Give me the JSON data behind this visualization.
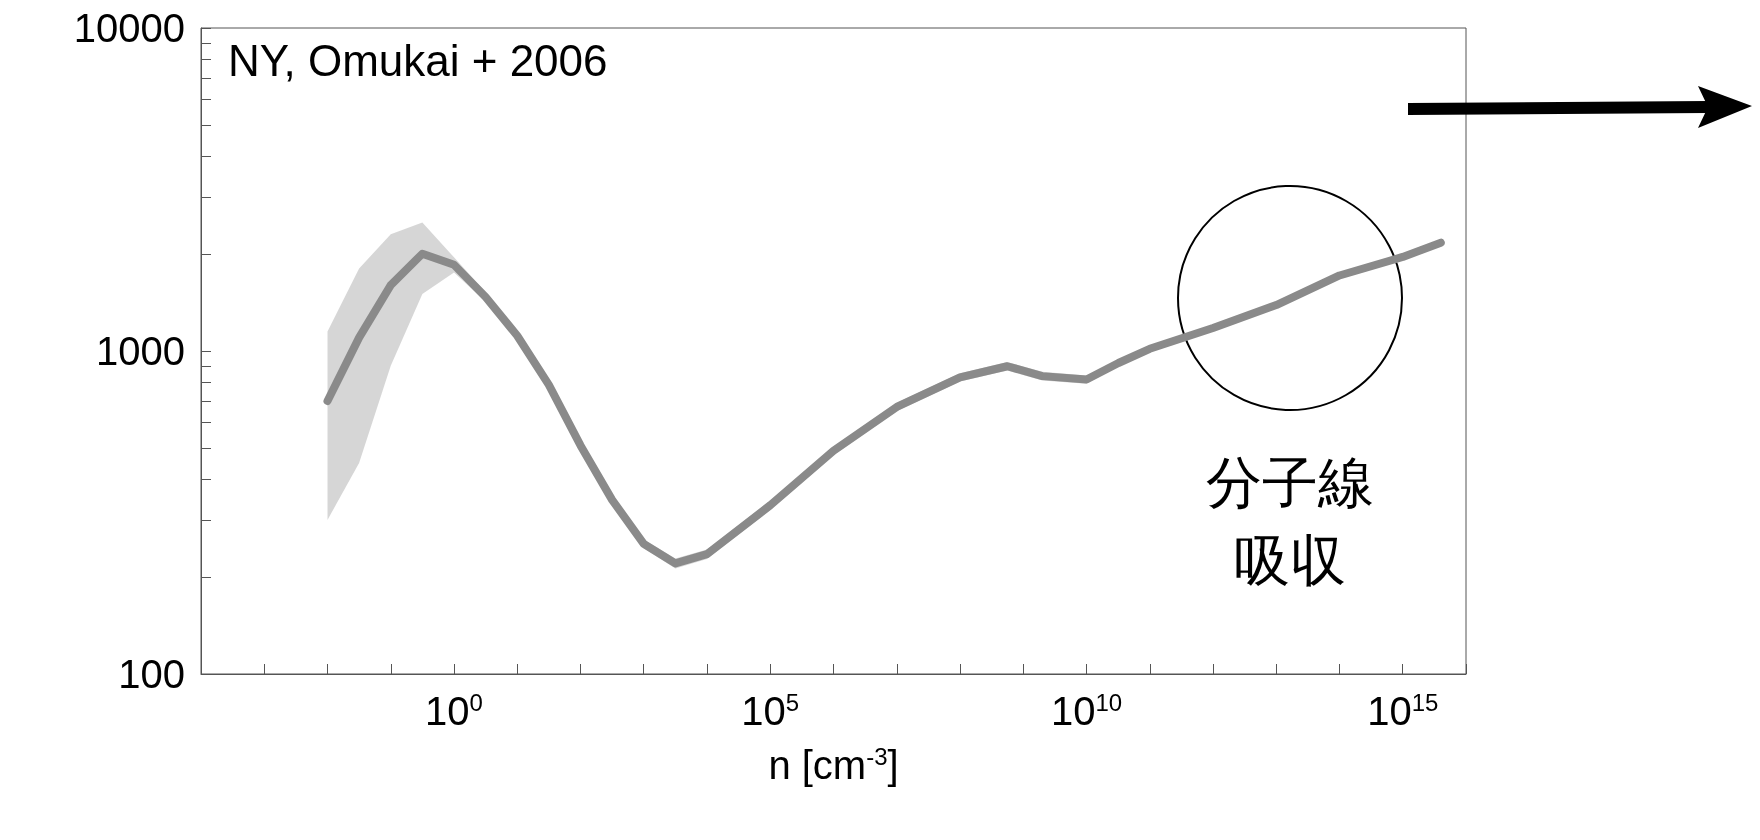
{
  "chart_data": {
    "type": "line",
    "xlabel": "n [cm$^{-3}$]",
    "annotations": [
      "NY, Omukai + 2006",
      "分子線吸収"
    ],
    "log": "xy",
    "grid": false,
    "line_style": "solid",
    "xlim": [
      0.0001,
      1e+16
    ],
    "ylim": [
      100,
      10000
    ],
    "xticks": [
      {
        "value": 0.0001,
        "label": null
      },
      {
        "value": 0.001,
        "label": null
      },
      {
        "value": 0.01,
        "label": null
      },
      {
        "value": 0.1,
        "label": null
      },
      {
        "value": 1,
        "label": "10$^{0}$"
      },
      {
        "value": 10,
        "label": null
      },
      {
        "value": 100,
        "label": null
      },
      {
        "value": 1000.0,
        "label": null
      },
      {
        "value": 10000.0,
        "label": null
      },
      {
        "value": 100000.0,
        "label": "10$^{5}$"
      },
      {
        "value": 1000000.0,
        "label": null
      },
      {
        "value": 10000000.0,
        "label": null
      },
      {
        "value": 100000000.0,
        "label": null
      },
      {
        "value": 1000000000.0,
        "label": null
      },
      {
        "value": 10000000000.0,
        "label": "10$^{10}$"
      },
      {
        "value": 100000000000.0,
        "label": null
      },
      {
        "value": 1000000000000.0,
        "label": null
      },
      {
        "value": 10000000000000.0,
        "label": null
      },
      {
        "value": 100000000000000.0,
        "label": null
      },
      {
        "value": 1000000000000000.0,
        "label": "10$^{15}$"
      },
      {
        "value": 1e+16,
        "label": null
      }
    ],
    "yticks": [
      100,
      {
        "value": 200,
        "label": null
      },
      {
        "value": 300,
        "label": null
      },
      {
        "value": 400,
        "label": null
      },
      {
        "value": 500,
        "label": null
      },
      {
        "value": 600,
        "label": null
      },
      {
        "value": 700,
        "label": null
      },
      {
        "value": 800,
        "label": null
      },
      {
        "value": 900,
        "label": null
      },
      1000,
      {
        "value": 2000,
        "label": null
      },
      {
        "value": 3000,
        "label": null
      },
      {
        "value": 4000,
        "label": null
      },
      {
        "value": 5000,
        "label": null
      },
      {
        "value": 6000,
        "label": null
      },
      {
        "value": 7000,
        "label": null
      },
      {
        "value": 8000,
        "label": null
      },
      {
        "value": 9000,
        "label": null
      },
      10000
    ],
    "series": [
      {
        "color": "#8a8a8a",
        "x": [
          0.01,
          0.0316,
          0.1,
          0.316,
          1,
          3.16,
          10,
          31.6,
          100,
          316,
          1000,
          3160,
          10000,
          100000.0,
          1000000.0,
          10000000.0,
          100000000.0,
          560000000.0,
          2000000000.0,
          10000000000.0,
          32000000000.0,
          100000000000.0,
          1000000000000.0,
          10000000000000.0,
          100000000000000.0,
          1000000000000000.0,
          4000000000000000.0
        ],
        "values": [
          700,
          1100,
          1600,
          2000,
          1850,
          1470,
          1115,
          785,
          510,
          346,
          253,
          220,
          235,
          333,
          491,
          671,
          829,
          897,
          836,
          816,
          918,
          1016,
          1178,
          1388,
          1713,
          1955,
          2165
        ],
        "lower": [
          300,
          450,
          900,
          1500,
          1750,
          1420,
          1080,
          760,
          495,
          336,
          245,
          212,
          227,
          322,
          476,
          651,
          805,
          870,
          810,
          792,
          900,
          1000,
          1160,
          1370,
          1690,
          1930,
          2140
        ],
        "upper": [
          1150,
          1800,
          2300,
          2500,
          1950,
          1520,
          1150,
          810,
          525,
          356,
          261,
          228,
          243,
          344,
          506,
          691,
          853,
          924,
          862,
          840,
          936,
          1032,
          1196,
          1406,
          1736,
          1980,
          2190
        ]
      }
    ]
  }
}
